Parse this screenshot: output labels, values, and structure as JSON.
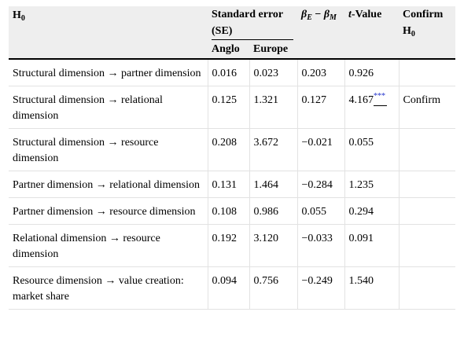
{
  "table": {
    "headers": {
      "h0": "H",
      "h0_sub": "0",
      "se": "Standard error (SE)",
      "anglo": "Anglo",
      "europe": "Europe",
      "beta_e": "β",
      "beta_e_sub": "E",
      "beta_minus": " − ",
      "beta_m": "β",
      "beta_m_sub": "M",
      "t_italic": "t",
      "t_rest": "-Value",
      "confirm": "Confirm H",
      "confirm_sub": "0"
    },
    "rows": [
      {
        "h": "Structural dimension → partner dimension",
        "anglo": "0.016",
        "europe": "0.023",
        "beta": "0.203",
        "t": "0.926",
        "sig": "",
        "confirm": ""
      },
      {
        "h": "Structural dimension → relational dimension",
        "anglo": "0.125",
        "europe": "1.321",
        "beta": "0.127",
        "t": "4.167",
        "sig": "***",
        "confirm": "Confirm"
      },
      {
        "h": "Structural dimension → resource dimension",
        "anglo": "0.208",
        "europe": "3.672",
        "beta": "−0.021",
        "t": "0.055",
        "sig": "",
        "confirm": ""
      },
      {
        "h": "Partner dimension → relational dimension",
        "anglo": "0.131",
        "europe": "1.464",
        "beta": "−0.284",
        "t": "1.235",
        "sig": "",
        "confirm": ""
      },
      {
        "h": "Partner dimension → resource dimension",
        "anglo": "0.108",
        "europe": "0.986",
        "beta": "0.055",
        "t": "0.294",
        "sig": "",
        "confirm": ""
      },
      {
        "h": "Relational dimension → resource dimension",
        "anglo": "0.192",
        "europe": "3.120",
        "beta": "−0.033",
        "t": "0.091",
        "sig": "",
        "confirm": ""
      },
      {
        "h": "Resource dimension → value creation: market share",
        "anglo": "0.094",
        "europe": "0.756",
        "beta": "−0.249",
        "t": "1.540",
        "sig": "",
        "confirm": ""
      }
    ]
  }
}
